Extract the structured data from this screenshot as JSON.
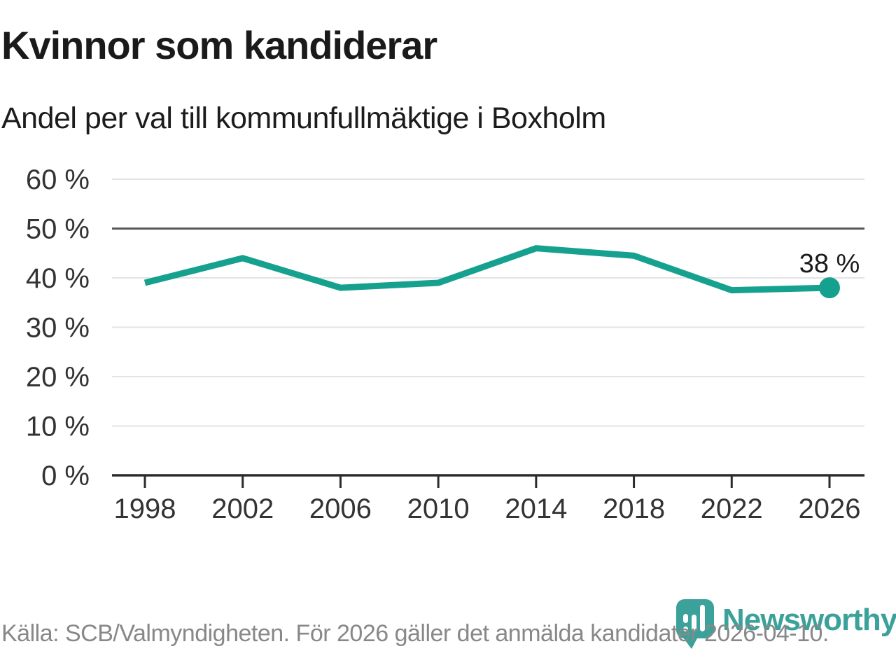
{
  "header": {
    "title": "Kvinnor som kandiderar",
    "subtitle": "Andel per val till kommunfullmäktige i Boxholm"
  },
  "footer": {
    "source": "Källa: SCB/Valmyndigheten. För 2026 gäller det anmälda kandidater 2026-04-10.",
    "brand": "Newsworthy"
  },
  "colors": {
    "line": "#16A18F",
    "marker": "#16A18F",
    "brand_teal": "#3BA19A",
    "grid_light": "#E3E3E3",
    "grid_dark": "#595959",
    "axis": "#2B2B2B",
    "tick_text": "#333333",
    "footer_text": "#888888"
  },
  "chart_data": {
    "type": "line",
    "title": "Kvinnor som kandiderar",
    "subtitle": "Andel per val till kommunfullmäktige i Boxholm",
    "x": [
      1998,
      2002,
      2006,
      2010,
      2014,
      2018,
      2022,
      2026
    ],
    "values": [
      39,
      44,
      38,
      39,
      46,
      44.5,
      37.5,
      38
    ],
    "unit": "%",
    "xlabel": "",
    "ylabel": "",
    "ylim": [
      0,
      60
    ],
    "y_ticks": [
      0,
      10,
      20,
      30,
      40,
      50,
      60
    ],
    "y_tick_suffix": " %",
    "emphasized_gridline": 50,
    "grid": "horizontal",
    "legend": "none",
    "end_label": "38 %",
    "end_label_point": {
      "x": 2026,
      "y": 38
    }
  }
}
